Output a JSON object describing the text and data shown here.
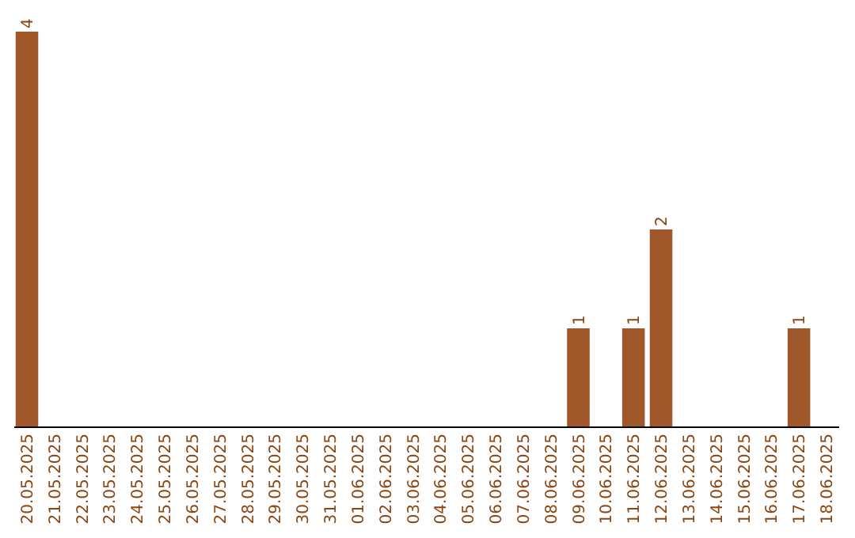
{
  "chart_data": {
    "type": "bar",
    "categories": [
      "20.05.2025",
      "21.05.2025",
      "22.05.2025",
      "23.05.2025",
      "24.05.2025",
      "25.05.2025",
      "26.05.2025",
      "27.05.2025",
      "28.05.2025",
      "29.05.2025",
      "30.05.2025",
      "31.05.2025",
      "01.06.2025",
      "02.06.2025",
      "03.06.2025",
      "04.06.2025",
      "05.06.2025",
      "06.06.2025",
      "07.06.2025",
      "08.06.2025",
      "09.06.2025",
      "10.06.2025",
      "11.06.2025",
      "12.06.2025",
      "13.06.2025",
      "14.06.2025",
      "15.06.2025",
      "16.06.2025",
      "17.06.2025",
      "18.06.2025"
    ],
    "values": [
      4,
      0,
      0,
      0,
      0,
      0,
      0,
      0,
      0,
      0,
      0,
      0,
      0,
      0,
      0,
      0,
      0,
      0,
      0,
      0,
      1,
      0,
      1,
      2,
      0,
      0,
      0,
      0,
      1,
      0
    ],
    "value_labels": [
      "4",
      null,
      null,
      null,
      null,
      null,
      null,
      null,
      null,
      null,
      null,
      null,
      null,
      null,
      null,
      null,
      null,
      null,
      null,
      null,
      "1",
      null,
      "1",
      "2",
      null,
      null,
      null,
      null,
      "1",
      null
    ],
    "color": "#a0582b"
  }
}
